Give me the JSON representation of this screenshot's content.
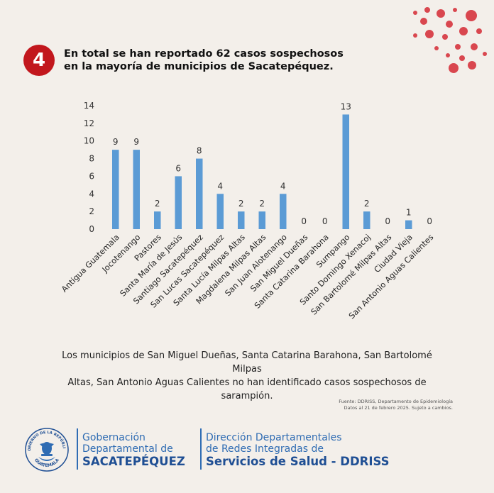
{
  "header": {
    "number": "4",
    "title_line1": "En total se han reportado 62 casos sospechosos",
    "title_line2": "en la mayoría de municipios de Sacatepéquez.",
    "accent_color": "#c2171d"
  },
  "chart_data": {
    "type": "bar",
    "categories": [
      "Antigua Guatemala",
      "Jocotenango",
      "Pastores",
      "Santa María de Jesús",
      "Santiago Sacatepéquez",
      "San Lucas Sacatepéquez",
      "Santa Lucía Milpas Altas",
      "Magdalena Milpas Altas",
      "San Juan Alotenango",
      "San Miguel Dueñas",
      "Santa Catarina Barahona",
      "Sumpango",
      "Santo Domingo Xenacoj",
      "San Bartolomé Milpas Altas",
      "Ciudad Vieja",
      "San Antonio Aguas Calientes"
    ],
    "values": [
      9,
      9,
      2,
      6,
      8,
      4,
      2,
      2,
      4,
      0,
      0,
      13,
      2,
      0,
      1,
      0
    ],
    "yticks": [
      0,
      2,
      4,
      6,
      8,
      10,
      12,
      14
    ],
    "ylim": [
      0,
      14
    ],
    "title": "",
    "xlabel": "",
    "ylabel": "",
    "bar_color": "#5b9bd5"
  },
  "note": {
    "line1": "Los municipios de San Miguel Dueñas, Santa Catarina Barahona, San Bartolomé Milpas",
    "line2": "Altas, San Antonio Aguas Calientes no han identificado casos sospechosos de sarampión."
  },
  "source": {
    "line1": "Fuente: DDRISS, Departamento de Epidemiología",
    "line2": "Datos al 21 de febrero 2025. Sujeto a cambios."
  },
  "footer": {
    "seal_top": "GOBIERNO DE LA REPÚBLICA",
    "seal_bottom": "GUATEMALA",
    "org1_line1": "Gobernación",
    "org1_line2": "Departamental de",
    "org1_line3": "SACATEPÉQUEZ",
    "org2_line1": "Dirección Departamentales",
    "org2_line2": "de Redes Integradas de",
    "org2_line3": "Servicios de Salud - DDRISS"
  }
}
